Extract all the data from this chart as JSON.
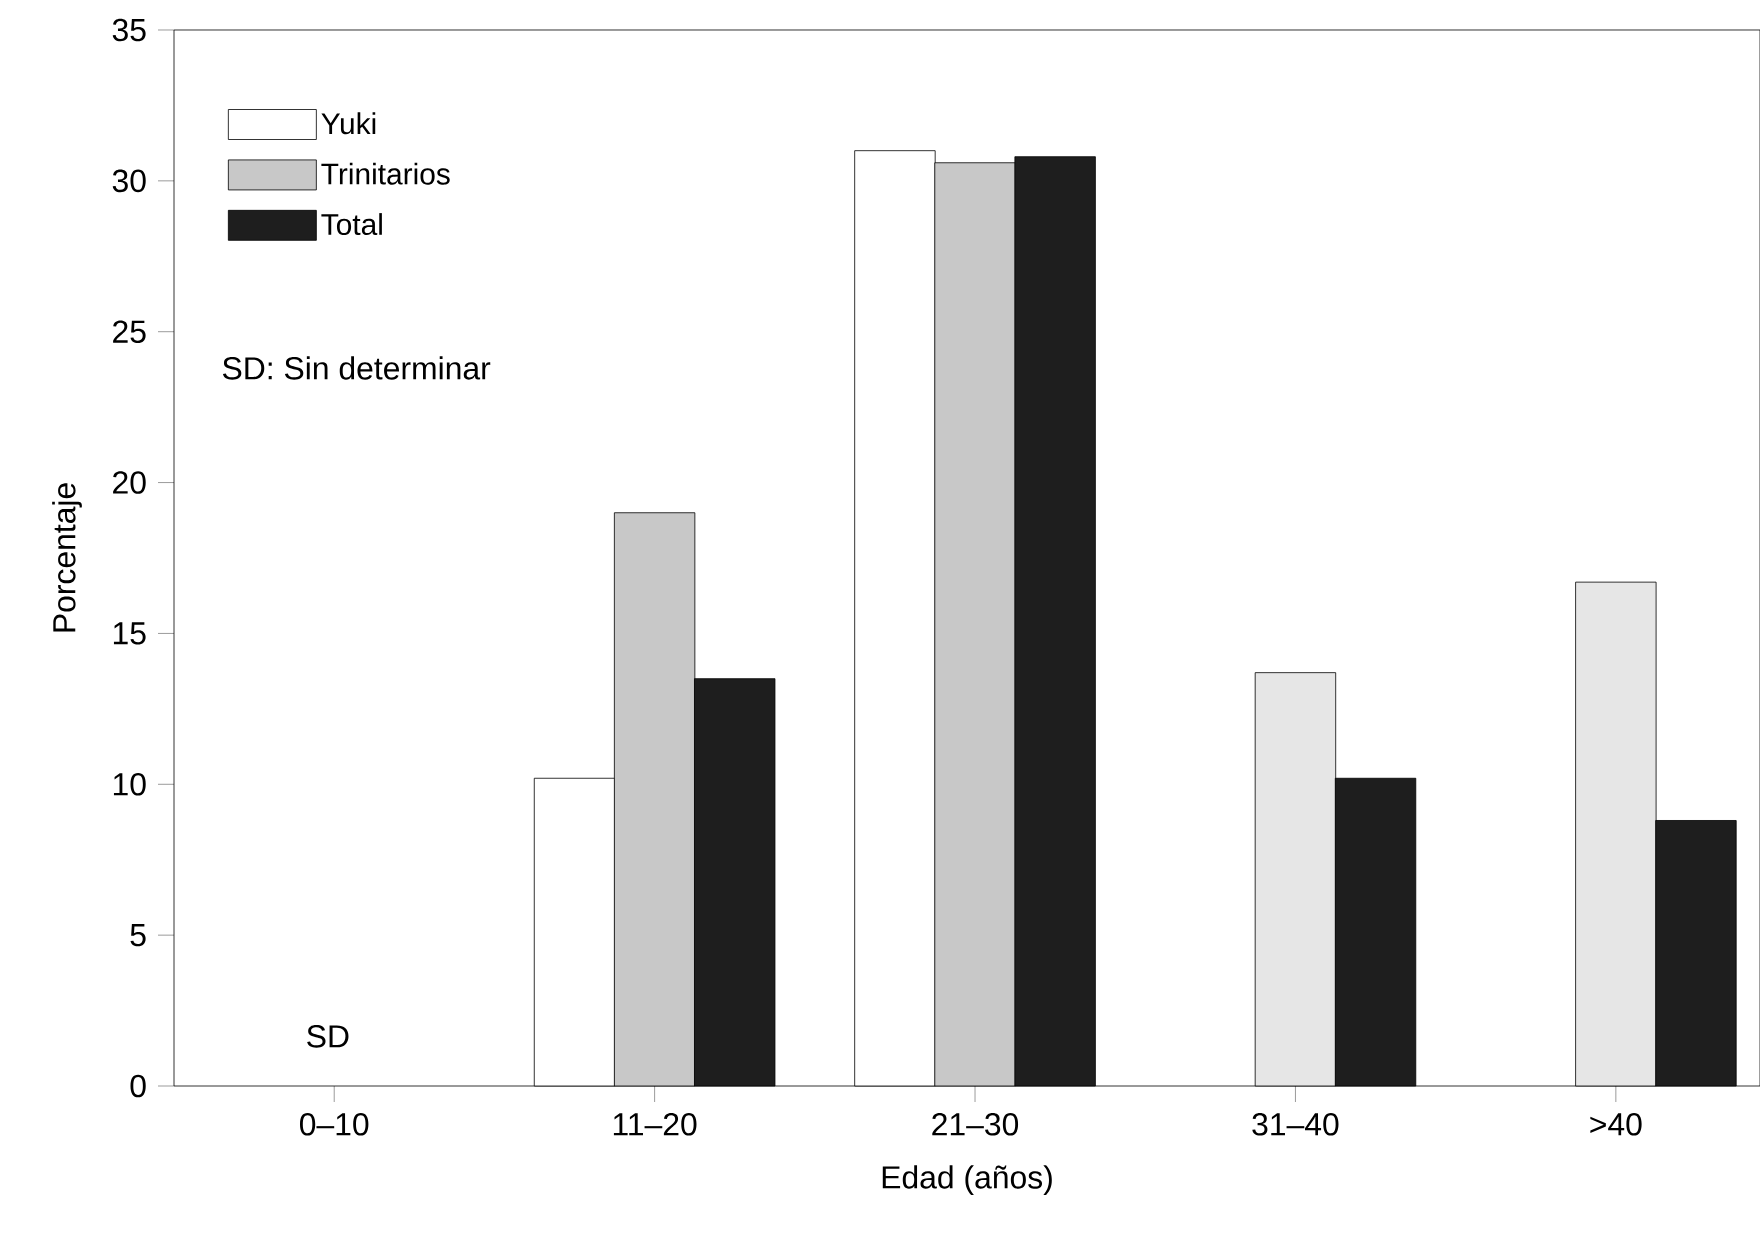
{
  "chart_data": {
    "type": "bar",
    "xlabel": "Edad (años)",
    "ylabel": "Porcentaje",
    "categories": [
      "0–10",
      "11–20",
      "21–30",
      "31–40",
      ">40"
    ],
    "series": [
      {
        "name": "Yuki",
        "color": "#ffffff",
        "values": [
          null,
          10.2,
          31.0,
          null,
          null
        ]
      },
      {
        "name": "Trinitarios",
        "color": "#c8c8c8",
        "colors": [
          "#c8c8c8",
          "#c8c8c8",
          "#c8c8c8",
          "#e6e6e6",
          "#e6e6e6"
        ],
        "values": [
          null,
          19.0,
          30.6,
          13.7,
          16.7
        ]
      },
      {
        "name": "Total",
        "color": "#1e1e1e",
        "values": [
          null,
          13.5,
          30.8,
          10.2,
          8.8
        ]
      }
    ],
    "ylim": [
      0,
      35
    ],
    "yticks": [
      0,
      5,
      10,
      15,
      20,
      25,
      30,
      35
    ],
    "legend": "top left",
    "grid": false,
    "annotations": [
      "SD",
      "SD: Sin determinar"
    ]
  }
}
